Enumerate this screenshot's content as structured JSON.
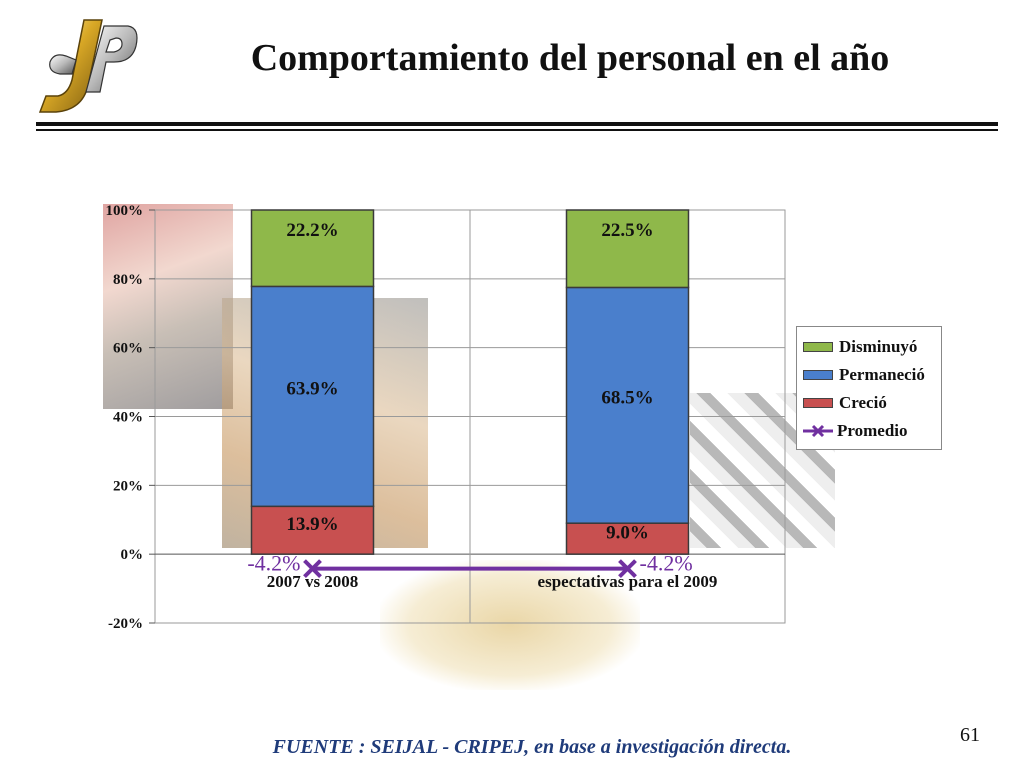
{
  "slide": {
    "title": "Comportamiento del personal en el año",
    "source": "FUENTE : SEIJAL - CRIPEJ, en base a investigación directa.",
    "page_number": "61"
  },
  "colors": {
    "disminuyo": "#8fb84a",
    "permanecio": "#4a7fcc",
    "crecio": "#c85050",
    "promedio": "#7030a0"
  },
  "chart_data": {
    "type": "bar",
    "stacked": true,
    "categories": [
      "2007 vs 2008",
      "espectativas para el 2009"
    ],
    "series": [
      {
        "name": "Creció",
        "values": [
          13.9,
          9.0
        ],
        "labels": [
          "13.9%",
          "9.0%"
        ]
      },
      {
        "name": "Permaneció",
        "values": [
          63.9,
          68.5
        ],
        "labels": [
          "63.9%",
          "68.5%"
        ]
      },
      {
        "name": "Disminuyó",
        "values": [
          22.2,
          22.5
        ],
        "labels": [
          "22.2%",
          "22.5%"
        ]
      }
    ],
    "line_series": {
      "name": "Promedio",
      "values": [
        -4.2,
        -4.2
      ],
      "labels": [
        "-4.2%",
        "-4.2%"
      ]
    },
    "yticks": [
      "-20%",
      "0%",
      "20%",
      "40%",
      "60%",
      "80%",
      "100%"
    ],
    "ylim": [
      -20,
      100
    ],
    "grid": true,
    "legend": {
      "position": "right",
      "items": [
        "Disminuyó",
        "Permaneció",
        "Creció",
        "Promedio"
      ]
    }
  }
}
